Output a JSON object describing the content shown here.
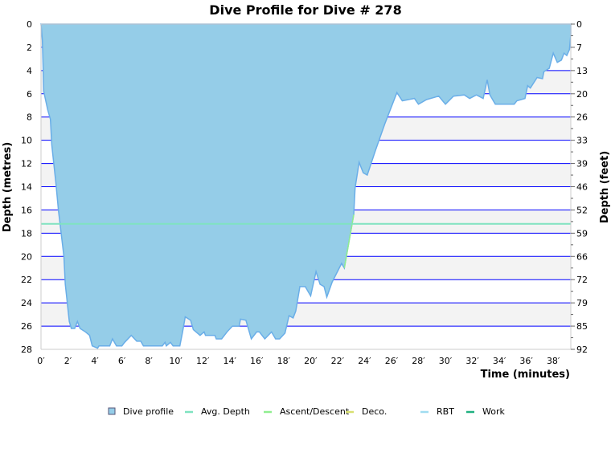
{
  "chart_data": {
    "type": "area",
    "title": "Dive Profile for Dive # 278",
    "xlabel": "Time (minutes)",
    "ylabel": "Depth (metres)",
    "ylabel_right": "Depth (feet)",
    "xlim": [
      0,
      39.3
    ],
    "ylim": [
      0,
      28
    ],
    "y_inverted": true,
    "grid": true,
    "x_ticks": [
      "0′",
      "2′",
      "4′",
      "6′",
      "8′",
      "10′",
      "12′",
      "14′",
      "16′",
      "18′",
      "20′",
      "22′",
      "24′",
      "26′",
      "28′",
      "30′",
      "32′",
      "34′",
      "36′",
      "38′"
    ],
    "y_ticks": [
      "0",
      "2",
      "4",
      "6",
      "8",
      "10",
      "12",
      "14",
      "16",
      "18",
      "20",
      "22",
      "24",
      "26",
      "28"
    ],
    "y_ticks_right": [
      "0",
      "7",
      "13",
      "20",
      "26",
      "33",
      "39",
      "46",
      "52",
      "59",
      "66",
      "72",
      "79",
      "85",
      "92"
    ],
    "avg_depth": 17.2,
    "legend_position": "bottom",
    "legend": [
      {
        "label": "Dive profile",
        "color": "#95cde8",
        "icon": "square"
      },
      {
        "label": "Avg. Depth",
        "color": "#7fe3c0",
        "icon": "line"
      },
      {
        "label": "Ascent/Descent",
        "color": "#90ee90",
        "icon": "line"
      },
      {
        "label": "Deco.",
        "color": "#d8e070",
        "icon": "line"
      },
      {
        "label": "RBT",
        "color": "#a0dcf0",
        "icon": "line"
      },
      {
        "label": "Work",
        "color": "#20b080",
        "icon": "line"
      }
    ],
    "colors": {
      "fill": "#95cde8",
      "outline": "#6aaee8",
      "grid": "#0000ff",
      "band": "#f3f3f3"
    },
    "series": [
      {
        "name": "Dive profile",
        "points": [
          [
            0,
            0
          ],
          [
            0.1,
            1.4
          ],
          [
            0.2,
            5.8
          ],
          [
            0.5,
            7.4
          ],
          [
            0.7,
            8.2
          ],
          [
            0.8,
            10.4
          ],
          [
            1.1,
            13.6
          ],
          [
            1.3,
            16.1
          ],
          [
            1.7,
            20.0
          ],
          [
            1.8,
            22.4
          ],
          [
            2.1,
            25.6
          ],
          [
            2.25,
            26.2
          ],
          [
            2.5,
            26.2
          ],
          [
            2.7,
            25.6
          ],
          [
            2.9,
            26.2
          ],
          [
            3.3,
            26.5
          ],
          [
            3.6,
            26.8
          ],
          [
            3.8,
            27.7
          ],
          [
            4.2,
            27.9
          ],
          [
            4.3,
            27.7
          ],
          [
            5.1,
            27.7
          ],
          [
            5.3,
            27.1
          ],
          [
            5.6,
            27.7
          ],
          [
            6.0,
            27.7
          ],
          [
            6.2,
            27.4
          ],
          [
            6.7,
            26.8
          ],
          [
            7.1,
            27.3
          ],
          [
            7.4,
            27.3
          ],
          [
            7.6,
            27.7
          ],
          [
            9.0,
            27.7
          ],
          [
            9.2,
            27.4
          ],
          [
            9.3,
            27.7
          ],
          [
            9.6,
            27.4
          ],
          [
            9.8,
            27.7
          ],
          [
            10.3,
            27.7
          ],
          [
            10.5,
            26.5
          ],
          [
            10.7,
            25.2
          ],
          [
            11.1,
            25.5
          ],
          [
            11.3,
            26.3
          ],
          [
            11.8,
            26.8
          ],
          [
            12.1,
            26.5
          ],
          [
            12.2,
            26.8
          ],
          [
            12.9,
            26.8
          ],
          [
            13.0,
            27.1
          ],
          [
            13.4,
            27.1
          ],
          [
            13.8,
            26.5
          ],
          [
            14.2,
            26.0
          ],
          [
            14.7,
            26.0
          ],
          [
            14.8,
            25.4
          ],
          [
            15.2,
            25.5
          ],
          [
            15.6,
            27.1
          ],
          [
            16.0,
            26.5
          ],
          [
            16.2,
            26.5
          ],
          [
            16.6,
            27.1
          ],
          [
            17.1,
            26.5
          ],
          [
            17.4,
            27.1
          ],
          [
            17.7,
            27.1
          ],
          [
            18.1,
            26.6
          ],
          [
            18.4,
            25.1
          ],
          [
            18.7,
            25.3
          ],
          [
            18.9,
            24.7
          ],
          [
            19.2,
            22.6
          ],
          [
            19.6,
            22.6
          ],
          [
            20.0,
            23.4
          ],
          [
            20.4,
            21.3
          ],
          [
            20.7,
            22.4
          ],
          [
            21.0,
            22.6
          ],
          [
            21.2,
            23.5
          ],
          [
            21.6,
            22.2
          ],
          [
            22.3,
            20.6
          ],
          [
            22.5,
            21.0
          ],
          [
            23.2,
            16.4
          ],
          [
            23.3,
            14.1
          ],
          [
            23.6,
            11.9
          ],
          [
            23.9,
            12.8
          ],
          [
            24.2,
            13.0
          ],
          [
            24.8,
            10.9
          ],
          [
            25.5,
            8.6
          ],
          [
            26.4,
            5.9
          ],
          [
            26.8,
            6.6
          ],
          [
            27.7,
            6.4
          ],
          [
            28.0,
            6.9
          ],
          [
            28.6,
            6.5
          ],
          [
            29.5,
            6.2
          ],
          [
            30.0,
            6.9
          ],
          [
            30.6,
            6.2
          ],
          [
            31.4,
            6.1
          ],
          [
            31.8,
            6.4
          ],
          [
            32.3,
            6.1
          ],
          [
            32.8,
            6.4
          ],
          [
            33.1,
            4.8
          ],
          [
            33.3,
            6.1
          ],
          [
            33.7,
            6.9
          ],
          [
            35.1,
            6.9
          ],
          [
            35.3,
            6.6
          ],
          [
            35.9,
            6.4
          ],
          [
            36.1,
            5.3
          ],
          [
            36.3,
            5.5
          ],
          [
            36.8,
            4.6
          ],
          [
            37.2,
            4.7
          ],
          [
            37.3,
            4.1
          ],
          [
            37.7,
            3.8
          ],
          [
            38.0,
            2.5
          ],
          [
            38.3,
            3.3
          ],
          [
            38.6,
            3.1
          ],
          [
            38.8,
            2.5
          ],
          [
            39.0,
            2.7
          ],
          [
            39.2,
            2.2
          ],
          [
            39.3,
            0.9
          ],
          [
            39.3,
            0
          ]
        ]
      },
      {
        "name": "Ascent/Descent",
        "points": [
          [
            22.5,
            21.0
          ],
          [
            23.2,
            16.4
          ]
        ]
      }
    ]
  }
}
